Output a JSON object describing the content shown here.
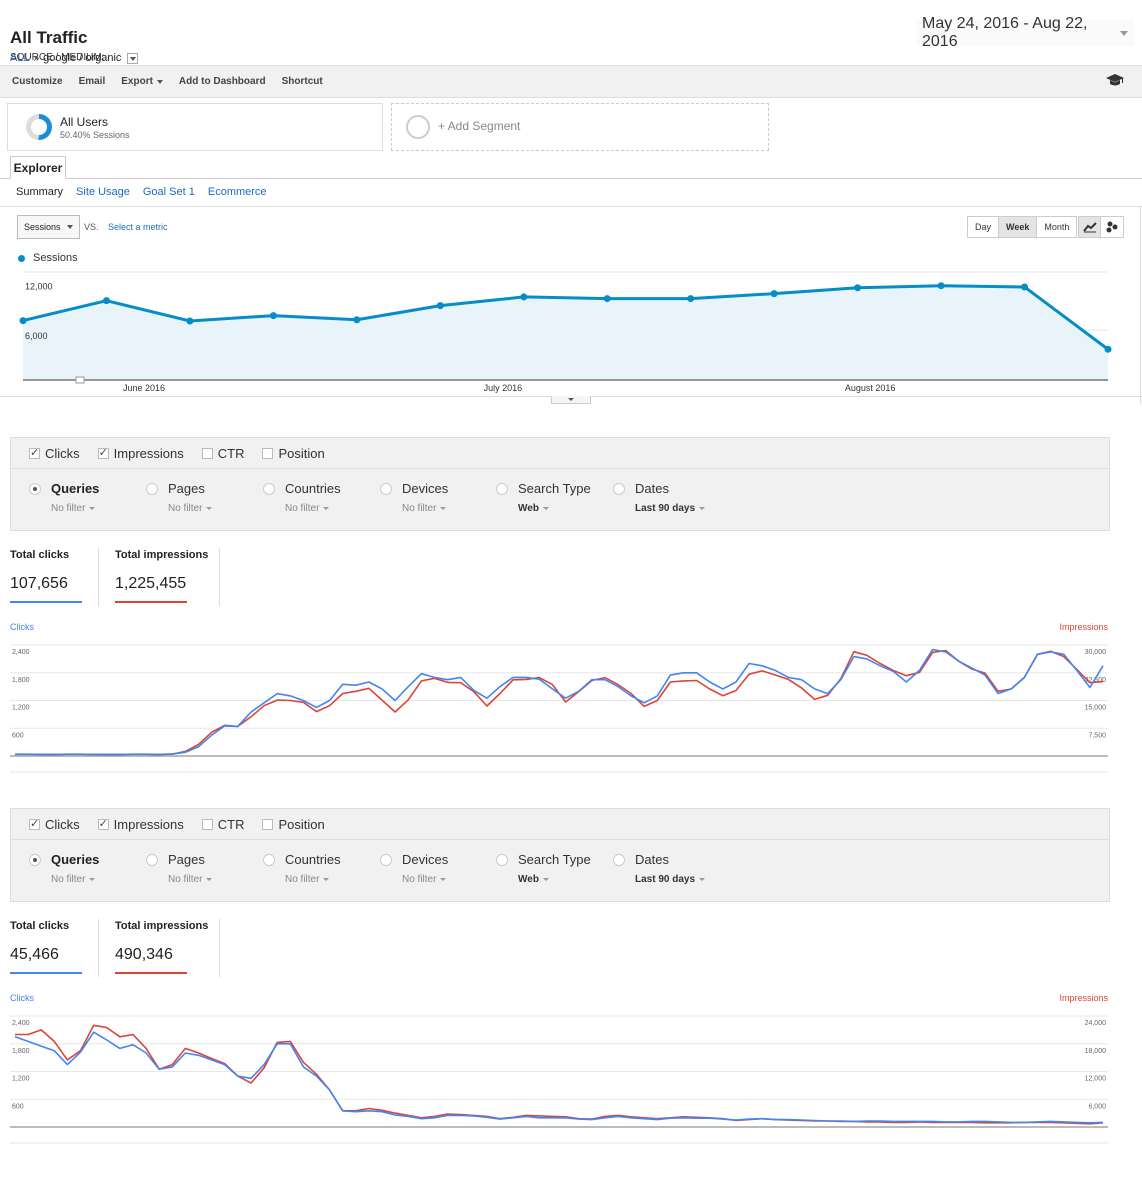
{
  "header": {
    "title": "All Traffic",
    "breadcrumb": {
      "root": "ALL",
      "sep": "»",
      "dim_label": "SOURCE / MEDIUM:",
      "dim_value": "google / organic"
    },
    "date_range": "May 24, 2016 - Aug 22, 2016"
  },
  "toolbar": {
    "items": [
      "Customize",
      "Email",
      "Export",
      "Add to Dashboard",
      "Shortcut"
    ],
    "help_icon": "graduation-cap-icon"
  },
  "segments": {
    "all_users": {
      "name": "All Users",
      "detail": "50.40% Sessions",
      "share": 0.504
    },
    "add_label": "+ Add Segment"
  },
  "explorer": {
    "tab": "Explorer",
    "subtabs": [
      "Summary",
      "Site Usage",
      "Goal Set 1",
      "Ecommerce"
    ]
  },
  "chart_controls": {
    "metric": "Sessions",
    "vs": "VS.",
    "select_metric": "Select a metric",
    "periods": [
      "Day",
      "Week",
      "Month"
    ],
    "active_period": "Week"
  },
  "colors": {
    "ga_line": "#058dc7",
    "ga_fill": "#e8f4fa",
    "clicks": "#4285f4",
    "impressions": "#db4437"
  },
  "chart_data": [
    {
      "type": "area",
      "legend": [
        "Sessions"
      ],
      "y_ticks": [
        "12,000",
        "6,000"
      ],
      "ylim": [
        0,
        13000
      ],
      "x_labels": [
        {
          "label": "June 2016",
          "at": 1.45
        },
        {
          "label": "July 2016",
          "at": 5.75
        },
        {
          "label": "August 2016",
          "at": 10.15
        }
      ],
      "series": [
        {
          "name": "Sessions",
          "values": [
            7150,
            9550,
            7100,
            7750,
            7250,
            8950,
            10000,
            9800,
            9800,
            10400,
            11100,
            11350,
            11200,
            3700
          ]
        }
      ]
    },
    {
      "type": "line",
      "left_axis": {
        "label": "Clicks",
        "ticks": [
          "2,400",
          "1,800",
          "1,200",
          "600"
        ],
        "max": 2400
      },
      "right_axis": {
        "label": "Impressions",
        "ticks": [
          "30,000",
          "22,500",
          "15,000",
          "7,500"
        ],
        "max": 30000
      },
      "series": [
        {
          "name": "Clicks",
          "axis": "left",
          "values": [
            40,
            40,
            35,
            35,
            40,
            40,
            35,
            35,
            35,
            40,
            40,
            35,
            45,
            80,
            200,
            450,
            650,
            640,
            950,
            1150,
            1350,
            1300,
            1200,
            1050,
            1200,
            1550,
            1530,
            1600,
            1450,
            1200,
            1500,
            1780,
            1700,
            1650,
            1700,
            1420,
            1250,
            1500,
            1700,
            1700,
            1660,
            1450,
            1250,
            1400,
            1650,
            1650,
            1500,
            1300,
            1150,
            1300,
            1750,
            1800,
            1800,
            1600,
            1450,
            1600,
            2000,
            1950,
            1850,
            1700,
            1650,
            1450,
            1350,
            1650,
            2150,
            2100,
            1950,
            1830,
            1600,
            1850,
            2300,
            2250,
            2050,
            1900,
            1750,
            1350,
            1450,
            1700,
            2200,
            2250,
            2200,
            1850,
            1480,
            1950
          ]
        },
        {
          "name": "Impressions",
          "axis": "right",
          "values": [
            470,
            470,
            450,
            440,
            450,
            470,
            450,
            430,
            440,
            450,
            460,
            430,
            500,
            1250,
            3100,
            6400,
            8300,
            8000,
            10600,
            13600,
            15100,
            15000,
            14500,
            12000,
            13600,
            16900,
            17500,
            18300,
            15100,
            11900,
            15200,
            20300,
            21000,
            19900,
            19800,
            17400,
            13500,
            16900,
            20600,
            20700,
            21200,
            19300,
            14600,
            17400,
            20400,
            21200,
            19300,
            16900,
            13400,
            15000,
            20000,
            20300,
            20400,
            18100,
            16300,
            17700,
            22100,
            23000,
            21900,
            20700,
            18400,
            15300,
            16400,
            20900,
            28200,
            27200,
            25000,
            23100,
            21700,
            22600,
            28000,
            28500,
            25600,
            23500,
            22400,
            17500,
            18100,
            21200,
            27500,
            28300,
            26900,
            23400,
            19800,
            20100
          ]
        }
      ]
    },
    {
      "type": "line",
      "left_axis": {
        "label": "Clicks",
        "ticks": [
          "2,400",
          "1,800",
          "1,200",
          "600"
        ],
        "max": 2400
      },
      "right_axis": {
        "label": "Impressions",
        "ticks": [
          "24,000",
          "18,000",
          "12,000",
          "6,000"
        ],
        "max": 24000
      },
      "series": [
        {
          "name": "Clicks",
          "axis": "left",
          "values": [
            1950,
            1850,
            1750,
            1650,
            1350,
            1620,
            2050,
            1880,
            1700,
            1780,
            1600,
            1250,
            1300,
            1600,
            1550,
            1450,
            1350,
            1100,
            1050,
            1350,
            1800,
            1800,
            1300,
            1100,
            800,
            350,
            330,
            350,
            330,
            260,
            230,
            180,
            200,
            250,
            250,
            240,
            210,
            170,
            200,
            230,
            200,
            200,
            200,
            170,
            160,
            200,
            230,
            200,
            180,
            160,
            190,
            200,
            190,
            190,
            170,
            150,
            170,
            180,
            160,
            160,
            150,
            140,
            130,
            130,
            120,
            130,
            130,
            120,
            120,
            120,
            120,
            110,
            110,
            120,
            120,
            110,
            100,
            100,
            110,
            120,
            110,
            100,
            90,
            100
          ]
        },
        {
          "name": "Impressions",
          "axis": "right",
          "values": [
            20000,
            20000,
            21000,
            18500,
            14500,
            16500,
            22000,
            21500,
            19500,
            20000,
            17000,
            12500,
            13500,
            17000,
            16000,
            14800,
            13700,
            11000,
            9500,
            12800,
            18300,
            18500,
            14000,
            11400,
            8000,
            3500,
            3500,
            4000,
            3600,
            3000,
            2500,
            2000,
            2300,
            2800,
            2700,
            2500,
            2300,
            1800,
            2100,
            2500,
            2400,
            2300,
            2200,
            1800,
            1700,
            2300,
            2500,
            2200,
            2000,
            1800,
            2000,
            2200,
            2100,
            2000,
            1800,
            1400,
            1600,
            1800,
            1600,
            1500,
            1400,
            1300,
            1300,
            1200,
            1200,
            1100,
            1100,
            1000,
            1000,
            1100,
            1000,
            1000,
            1000,
            1000,
            900,
            900,
            900,
            1000,
            1000,
            1000,
            900,
            800,
            700,
            900
          ]
        }
      ]
    }
  ],
  "sc_panels": [
    {
      "metrics": [
        {
          "label": "Clicks",
          "checked": true
        },
        {
          "label": "Impressions",
          "checked": true
        },
        {
          "label": "CTR",
          "checked": false
        },
        {
          "label": "Position",
          "checked": false
        }
      ],
      "dimensions": [
        {
          "label": "Queries",
          "filter": "No filter",
          "selected": true
        },
        {
          "label": "Pages",
          "filter": "No filter",
          "selected": false
        },
        {
          "label": "Countries",
          "filter": "No filter",
          "selected": false
        },
        {
          "label": "Devices",
          "filter": "No filter",
          "selected": false
        },
        {
          "label": "Search Type",
          "filter": "Web",
          "selected": false
        },
        {
          "label": "Dates",
          "filter": "Last 90 days",
          "selected": false
        }
      ],
      "total_clicks_label": "Total clicks",
      "total_clicks": "107,656",
      "total_impressions_label": "Total impressions",
      "total_impressions": "1,225,455"
    },
    {
      "metrics": [
        {
          "label": "Clicks",
          "checked": true
        },
        {
          "label": "Impressions",
          "checked": true
        },
        {
          "label": "CTR",
          "checked": false
        },
        {
          "label": "Position",
          "checked": false
        }
      ],
      "dimensions": [
        {
          "label": "Queries",
          "filter": "No filter",
          "selected": true
        },
        {
          "label": "Pages",
          "filter": "No filter",
          "selected": false
        },
        {
          "label": "Countries",
          "filter": "No filter",
          "selected": false
        },
        {
          "label": "Devices",
          "filter": "No filter",
          "selected": false
        },
        {
          "label": "Search Type",
          "filter": "Web",
          "selected": false
        },
        {
          "label": "Dates",
          "filter": "Last 90 days",
          "selected": false
        }
      ],
      "total_clicks_label": "Total clicks",
      "total_clicks": "45,466",
      "total_impressions_label": "Total impressions",
      "total_impressions": "490,346"
    }
  ]
}
